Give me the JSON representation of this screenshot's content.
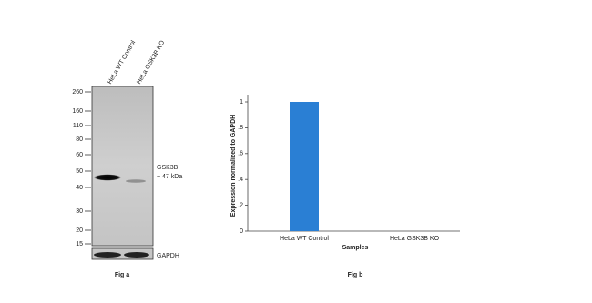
{
  "blot": {
    "lanes": [
      "HeLa WT Control",
      "HeLa GSK3B KO"
    ],
    "markers": [
      "260",
      "160",
      "110",
      "80",
      "60",
      "50",
      "40",
      "30",
      "20",
      "15"
    ],
    "target": [
      "GSK3B",
      "~ 47 kDa"
    ],
    "loading_control": "GAPDH",
    "caption": "Fig a"
  },
  "chart_data": {
    "type": "bar",
    "categories": [
      "HeLa WT Control",
      "HeLa GSK3B KO"
    ],
    "values": [
      1,
      0
    ],
    "color": "#2a7fd4",
    "ylim": [
      0,
      1
    ],
    "yticks": [
      0,
      {
        "value": 0.2,
        "label": ".2"
      },
      {
        "value": 0.4,
        "label": ".4"
      },
      {
        "value": 0.6,
        "label": ".6"
      },
      {
        "value": 0.8,
        "label": ".8"
      },
      1
    ],
    "y_label": "Expression normalized to GAPDH",
    "x_label": "Samples",
    "caption": "Fig b"
  }
}
